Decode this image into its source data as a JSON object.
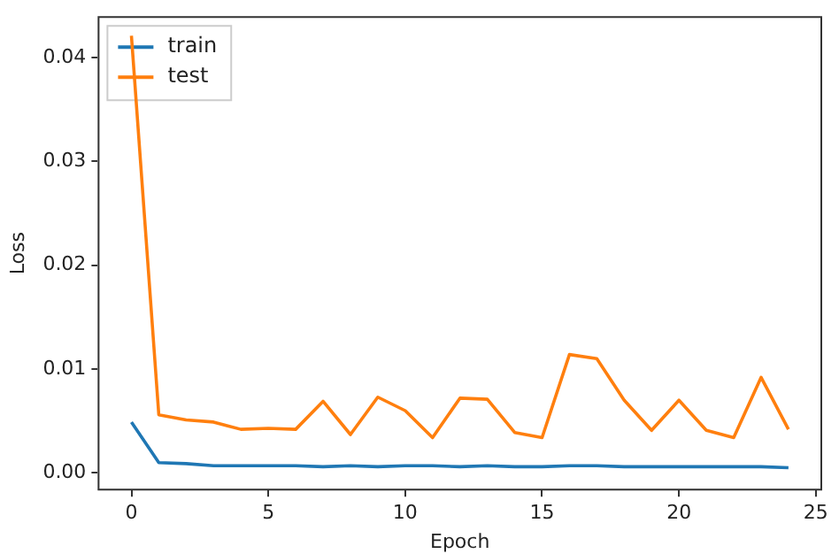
{
  "chart_data": {
    "type": "line",
    "xlabel": "Epoch",
    "ylabel": "Loss",
    "x": [
      0,
      1,
      2,
      3,
      4,
      5,
      6,
      7,
      8,
      9,
      10,
      11,
      12,
      13,
      14,
      15,
      16,
      17,
      18,
      19,
      20,
      21,
      22,
      23,
      24
    ],
    "series": [
      {
        "name": "train",
        "color": "#1f77b4",
        "values": [
          0.0049,
          0.001,
          0.0009,
          0.0007,
          0.0007,
          0.0007,
          0.0007,
          0.0006,
          0.0007,
          0.0006,
          0.0007,
          0.0007,
          0.0006,
          0.0007,
          0.0006,
          0.0006,
          0.0007,
          0.0007,
          0.0006,
          0.0006,
          0.0006,
          0.0006,
          0.0006,
          0.0006,
          0.0005
        ]
      },
      {
        "name": "test",
        "color": "#ff7f0e",
        "values": [
          0.0421,
          0.0056,
          0.0051,
          0.0049,
          0.0042,
          0.0043,
          0.0042,
          0.0069,
          0.0037,
          0.0073,
          0.006,
          0.0034,
          0.0072,
          0.0071,
          0.0039,
          0.0034,
          0.0114,
          0.011,
          0.007,
          0.0041,
          0.007,
          0.0041,
          0.0034,
          0.0092,
          0.0042
        ]
      }
    ],
    "xlim": [
      -1.2,
      25.2
    ],
    "xticks": [
      0,
      5,
      10,
      15,
      20,
      25
    ],
    "ylim": [
      -0.0016,
      0.0439
    ],
    "yticks": [
      {
        "value": 0,
        "label": "0.00"
      },
      {
        "value": 0.01,
        "label": "0.01"
      },
      {
        "value": 0.02,
        "label": "0.02"
      },
      {
        "value": 0.03,
        "label": "0.03"
      },
      {
        "value": 0.04,
        "label": "0.04"
      }
    ],
    "grid": false,
    "legend": "top left",
    "marker": "none",
    "line_style": "solid"
  }
}
